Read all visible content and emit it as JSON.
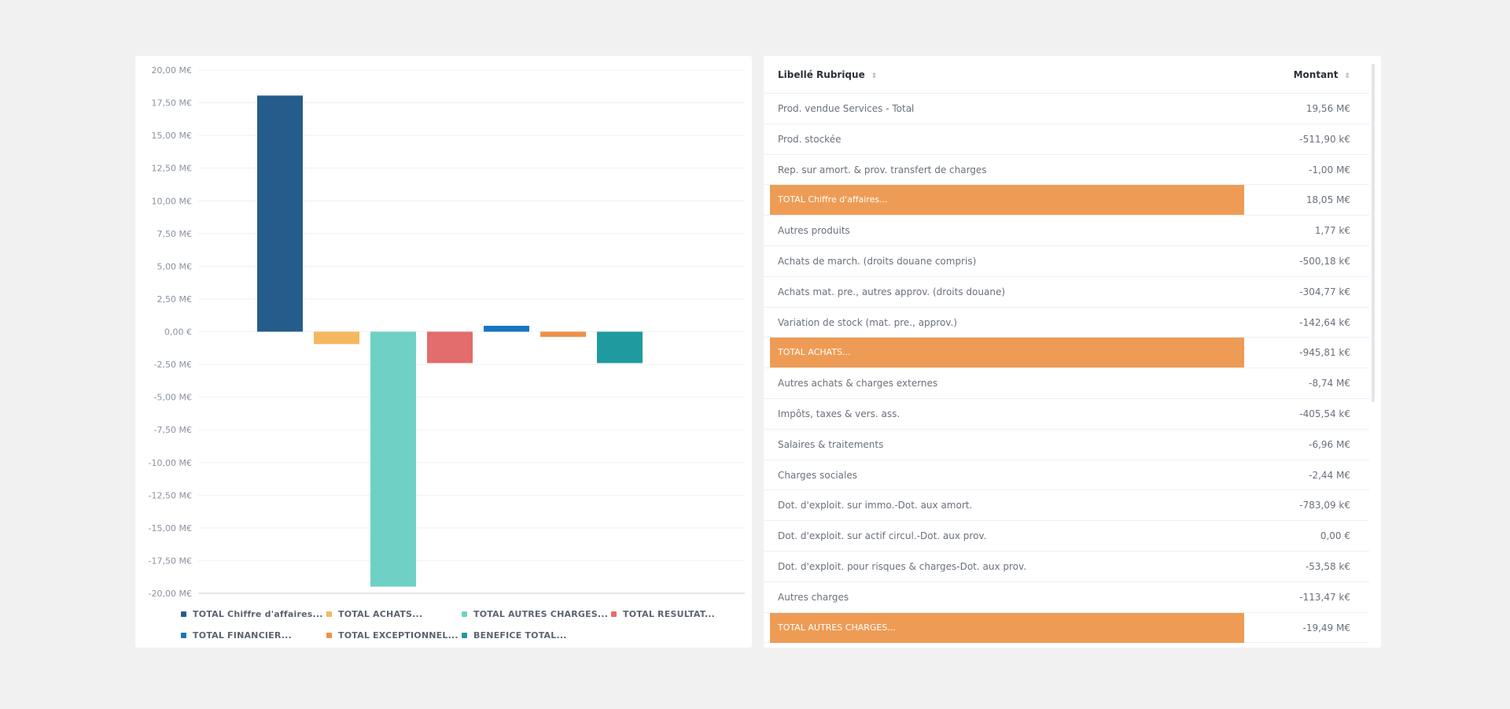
{
  "chart_data": {
    "type": "bar",
    "y_ticks": [
      "20,00 M€",
      "17,50 M€",
      "15,00 M€",
      "12,50 M€",
      "10,00 M€",
      "7,50 M€",
      "5,00 M€",
      "2,50 M€",
      "0,00 €",
      "-2,50 M€",
      "-5,00 M€",
      "-7,50 M€",
      "-10,00 M€",
      "-12,50 M€",
      "-15,00 M€",
      "-17,50 M€",
      "-20,00 M€"
    ],
    "ylim": [
      -20,
      20
    ],
    "y_unit": "M€",
    "grid": true,
    "legend_position": "bottom",
    "series": [
      {
        "name": "TOTAL Chiffre d'affaires...",
        "value": 18.05,
        "color": "#245d8c"
      },
      {
        "name": "TOTAL ACHATS...",
        "value": -0.95,
        "color": "#f4b860"
      },
      {
        "name": "TOTAL AUTRES CHARGES...",
        "value": -19.49,
        "color": "#6fd1c5"
      },
      {
        "name": "TOTAL RESULTAT...",
        "value": -2.4,
        "color": "#e36c6c"
      },
      {
        "name": "TOTAL FINANCIER...",
        "value": 0.45,
        "color": "#1576c1"
      },
      {
        "name": "TOTAL EXCEPTIONNEL...",
        "value": -0.4,
        "color": "#ee9147"
      },
      {
        "name": "BENEFICE TOTAL...",
        "value": -2.4,
        "color": "#1f9a9f"
      }
    ]
  },
  "table": {
    "header": {
      "label": "Libellé Rubrique",
      "amount": "Montant",
      "sort_icon": "⇕"
    },
    "rows": [
      {
        "label": "Prod. vendue Services - Total",
        "amount": "19,56 M€",
        "total": false
      },
      {
        "label": "Prod. stockée",
        "amount": "-511,90 k€",
        "total": false
      },
      {
        "label": "Rep. sur amort. & prov. transfert de charges",
        "amount": "-1,00 M€",
        "total": false
      },
      {
        "label": "TOTAL Chiffre d'affaires...",
        "amount": "18,05 M€",
        "total": true
      },
      {
        "label": "Autres produits",
        "amount": "1,77 k€",
        "total": false
      },
      {
        "label": "Achats de march. (droits douane compris)",
        "amount": "-500,18 k€",
        "total": false
      },
      {
        "label": "Achats mat. pre., autres approv. (droits douane)",
        "amount": "-304,77 k€",
        "total": false
      },
      {
        "label": "Variation de stock (mat. pre., approv.)",
        "amount": "-142,64 k€",
        "total": false
      },
      {
        "label": "TOTAL ACHATS...",
        "amount": "-945,81 k€",
        "total": true
      },
      {
        "label": "Autres achats & charges externes",
        "amount": "-8,74 M€",
        "total": false
      },
      {
        "label": "Impôts, taxes & vers. ass.",
        "amount": "-405,54 k€",
        "total": false
      },
      {
        "label": "Salaires & traitements",
        "amount": "-6,96 M€",
        "total": false
      },
      {
        "label": "Charges sociales",
        "amount": "-2,44 M€",
        "total": false
      },
      {
        "label": "Dot. d'exploit. sur immo.-Dot. aux amort.",
        "amount": "-783,09 k€",
        "total": false
      },
      {
        "label": "Dot. d'exploit. sur actif circul.-Dot. aux prov.",
        "amount": "0,00 €",
        "total": false
      },
      {
        "label": "Dot. d'exploit. pour risques & charges-Dot. aux prov.",
        "amount": "-53,58 k€",
        "total": false
      },
      {
        "label": "Autres charges",
        "amount": "-113,47 k€",
        "total": false
      },
      {
        "label": "TOTAL AUTRES CHARGES...",
        "amount": "-19,49 M€",
        "total": true
      }
    ]
  }
}
